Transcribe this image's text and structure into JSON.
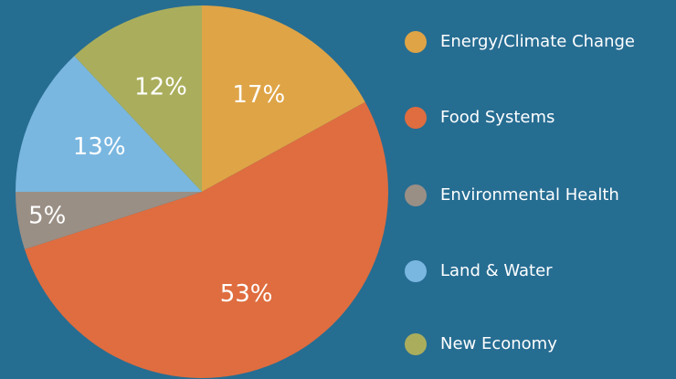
{
  "chart_data": {
    "type": "pie",
    "categories": [
      "Energy/Climate Change",
      "Food Systems",
      "Environmental Health",
      "Land & Water",
      "New Economy"
    ],
    "values": [
      17,
      53,
      5,
      13,
      12
    ],
    "value_labels": [
      "17%",
      "53%",
      "5%",
      "13%",
      "12%"
    ],
    "colors": [
      "#dfa446",
      "#df6d3f",
      "#9a8f85",
      "#7ab7e0",
      "#aaae5c"
    ],
    "legend": "right"
  }
}
